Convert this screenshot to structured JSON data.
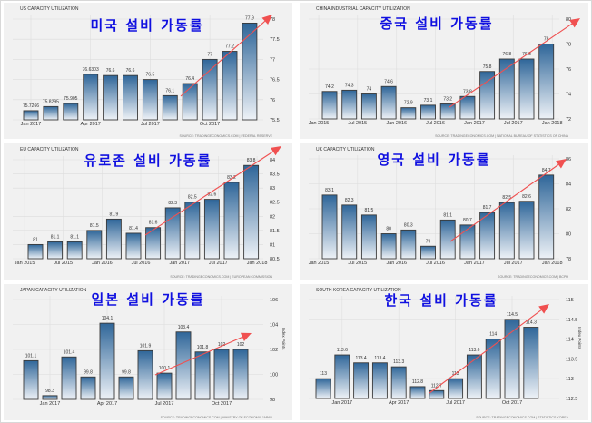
{
  "chart_data": [
    {
      "type": "bar",
      "title": "US CAPACITY UTILIZATION",
      "annotation": "미국 설비 가동률",
      "values": [
        75.7266,
        75.8295,
        75.905,
        76.6303,
        76.6,
        76.6,
        76.5,
        76.1,
        76.4,
        77,
        77.2,
        77.9
      ],
      "value_labels": [
        "75.7266",
        "75.8295",
        "75.905",
        "76.6303",
        "76.6",
        "76.6",
        "76.5",
        "76.1",
        "76.4",
        "77",
        "77.2",
        "77.9"
      ],
      "ylim": [
        75.5,
        78
      ],
      "yticks": [
        "75.5",
        "76",
        "76.5",
        "77",
        "77.5",
        "78"
      ],
      "xticks": [
        {
          "label": "Jan 2017",
          "index": 0
        },
        {
          "label": "Apr 2017",
          "index": 3
        },
        {
          "label": "Jul 2017",
          "index": 6
        },
        {
          "label": "Oct 2017",
          "index": 9
        }
      ],
      "ylabel": "",
      "source": "SOURCE: TRADINGECONOMICS.COM | FEDERAL RESERVE",
      "trend": "upward arrow"
    },
    {
      "type": "bar",
      "title": "CHINA INDUSTRIAL CAPACITY UTILIZATION",
      "annotation": "중국 설비 가동률",
      "values": [
        74.2,
        74.3,
        74,
        74.6,
        72.9,
        73.1,
        73.2,
        73.8,
        75.8,
        76.8,
        76.8,
        78
      ],
      "value_labels": [
        "74.2",
        "74.3",
        "74",
        "74.6",
        "72.9",
        "73.1",
        "73.2",
        "73.8",
        "75.8",
        "76.8",
        "76.8",
        "78"
      ],
      "ylim": [
        72,
        80
      ],
      "yticks": [
        "72",
        "74",
        "76",
        "78",
        "80"
      ],
      "xticks": [
        {
          "label": "Jan 2015",
          "index": -0.55
        },
        {
          "label": "Jul 2015",
          "index": 1.42
        },
        {
          "label": "Jan 2016",
          "index": 3.4
        },
        {
          "label": "Jul 2016",
          "index": 5.37
        },
        {
          "label": "Jan 2017",
          "index": 7.35
        },
        {
          "label": "Jul 2017",
          "index": 9.32
        },
        {
          "label": "Jan 2018",
          "index": 11.3
        }
      ],
      "ylabel": "",
      "source": "SOURCE: TRADINGECONOMICS.COM | NATIONAL BUREAU OF STATISTICS OF CHINA",
      "trend": "upward arrow"
    },
    {
      "type": "bar",
      "title": "EU CAPACITY UTILIZATION",
      "annotation": "유로존 설비 가동률",
      "values": [
        81,
        81.1,
        81.1,
        81.5,
        81.9,
        81.4,
        81.6,
        82.3,
        82.5,
        82.6,
        83.2,
        83.8
      ],
      "value_labels": [
        "81",
        "81.1",
        "81.1",
        "81.5",
        "81.9",
        "81.4",
        "81.6",
        "82.3",
        "82.5",
        "82.6",
        "83.2",
        "83.8"
      ],
      "ylim": [
        80.5,
        84
      ],
      "yticks": [
        "80.5",
        "81",
        "81.5",
        "82",
        "82.5",
        "83",
        "83.5",
        "84"
      ],
      "xticks": [
        {
          "label": "Jan 2015",
          "index": -0.55
        },
        {
          "label": "Jul 2015",
          "index": 1.42
        },
        {
          "label": "Jan 2016",
          "index": 3.4
        },
        {
          "label": "Jul 2016",
          "index": 5.37
        },
        {
          "label": "Jan 2017",
          "index": 7.35
        },
        {
          "label": "Jul 2017",
          "index": 9.32
        },
        {
          "label": "Jan 2018",
          "index": 11.3
        }
      ],
      "ylabel": "",
      "source": "SOURCE: TRADINGECONOMICS.COM | EUROPEAN COMMISSION",
      "trend": "upward arrow"
    },
    {
      "type": "bar",
      "title": "UK CAPACITY UTILIZATION",
      "annotation": "영국 설비 가동률",
      "values": [
        83.1,
        82.3,
        81.5,
        80,
        80.3,
        79,
        81.1,
        80.7,
        81.7,
        82.5,
        82.6,
        84.7
      ],
      "value_labels": [
        "83.1",
        "82.3",
        "81.5",
        "80",
        "80.3",
        "79",
        "81.1",
        "80.7",
        "81.7",
        "82.5",
        "82.6",
        "84.7"
      ],
      "ylim": [
        78,
        86
      ],
      "yticks": [
        "78",
        "80",
        "82",
        "84",
        "86"
      ],
      "xticks": [
        {
          "label": "Jan 2015",
          "index": -0.55
        },
        {
          "label": "Jul 2015",
          "index": 1.42
        },
        {
          "label": "Jan 2016",
          "index": 3.4
        },
        {
          "label": "Jul 2016",
          "index": 5.37
        },
        {
          "label": "Jan 2017",
          "index": 7.35
        },
        {
          "label": "Jul 2017",
          "index": 9.32
        },
        {
          "label": "Jan 2018",
          "index": 11.3
        }
      ],
      "ylabel": "",
      "source": "SOURCE: TRADINGECONOMICS.COM | BCPH",
      "trend": "upward arrow"
    },
    {
      "type": "bar",
      "title": "JAPAN CAPACITY UTILIZATION",
      "annotation": "일본 설비 가동률",
      "values": [
        101.1,
        98.3,
        101.4,
        99.8,
        104.1,
        99.8,
        101.9,
        100.1,
        103.4,
        101.8,
        102,
        102
      ],
      "value_labels": [
        "101.1",
        "98.3",
        "101.4",
        "99.8",
        "104.1",
        "99.8",
        "101.9",
        "100.1",
        "103.4",
        "101.8",
        "102",
        "102"
      ],
      "ylim": [
        98,
        106
      ],
      "yticks": [
        "98",
        "100",
        "102",
        "104",
        "106"
      ],
      "xticks": [
        {
          "label": "Jan 2017",
          "index": 1
        },
        {
          "label": "Apr 2017",
          "index": 4
        },
        {
          "label": "Jul 2017",
          "index": 7
        },
        {
          "label": "Oct 2017",
          "index": 10
        }
      ],
      "ylabel": "Index Points",
      "source": "SOURCE: TRADINGECONOMICS.COM | MINISTRY OF ECONOMY, JAPAN",
      "trend": "upward arrow"
    },
    {
      "type": "bar",
      "title": "SOUTH KOREA CAPACITY UTILIZATION",
      "annotation": "한국 설비 가동률",
      "values": [
        113,
        113.6,
        113.4,
        113.4,
        113.3,
        112.8,
        112.7,
        113,
        113.6,
        114,
        114.5,
        114.3
      ],
      "value_labels": [
        "113",
        "113.6",
        "113.4",
        "113.4",
        "113.3",
        "112.8",
        "112.7",
        "113",
        "113.6",
        "114",
        "114.5",
        "114.3"
      ],
      "ylim": [
        112.5,
        115
      ],
      "yticks": [
        "112.5",
        "113",
        "113.5",
        "114",
        "114.5",
        "115"
      ],
      "xticks": [
        {
          "label": "Jan 2017",
          "index": 1
        },
        {
          "label": "Apr 2017",
          "index": 4
        },
        {
          "label": "Jul 2017",
          "index": 7
        },
        {
          "label": "Oct 2017",
          "index": 10
        }
      ],
      "ylabel": "Index Points",
      "source": "SOURCE: TRADINGECONOMICS.COM | STATISTICS KOREA",
      "trend": "upward arrow"
    }
  ],
  "colors": {
    "bar_top": "#2f6699",
    "bar_bottom": "#eef2f7",
    "bar_border": "#3a3a3a",
    "annotation": "#1010e0",
    "arrow": "#f05050",
    "plot_bg": "#f1f1f1"
  }
}
